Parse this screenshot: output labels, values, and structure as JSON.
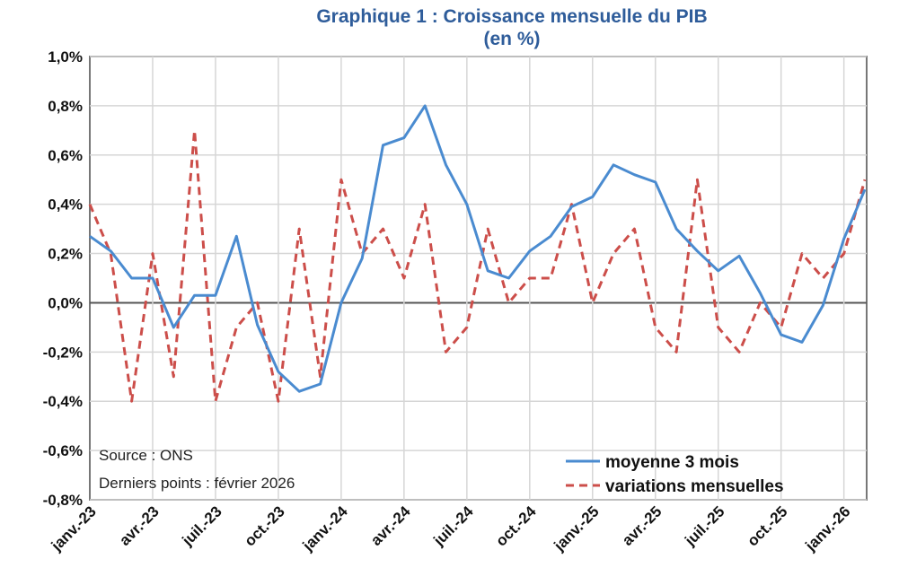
{
  "chart_data": {
    "type": "line",
    "title": "Graphique 1 : Croissance mensuelle du PIB",
    "subtitle": "(en %)",
    "xlabel": "",
    "ylabel": "",
    "ylim": [
      -0.8,
      1.0
    ],
    "y_ticks": [
      "1,0%",
      "0,8%",
      "0,6%",
      "0,4%",
      "0,2%",
      "0,0%",
      "-0,2%",
      "-0,4%",
      "-0,6%",
      "-0,8%"
    ],
    "x_tick_labels": [
      "janv.-23",
      "avr.-23",
      "juil.-23",
      "oct.-23",
      "janv.-24",
      "avr.-24",
      "juil.-24",
      "oct.-24",
      "janv.-25",
      "avr.-25",
      "juil.-25",
      "oct.-25",
      "janv.-26"
    ],
    "x_range": [
      "janv.-23",
      "févr.-26"
    ],
    "grid": true,
    "legend_position": "bottom-right",
    "series": [
      {
        "name": "moyenne 3 mois",
        "color": "#4A8BD0",
        "style": "solid",
        "values": [
          0.27,
          0.21,
          0.1,
          0.1,
          -0.1,
          0.03,
          0.03,
          0.27,
          -0.09,
          -0.28,
          -0.36,
          -0.33,
          0.0,
          0.18,
          0.64,
          0.67,
          0.8,
          0.56,
          0.4,
          0.13,
          0.1,
          0.21,
          0.27,
          0.39,
          0.43,
          0.56,
          0.52,
          0.49,
          0.3,
          0.21,
          0.13,
          0.19,
          0.04,
          -0.13,
          -0.16,
          -0.01,
          0.26,
          0.46
        ]
      },
      {
        "name": "variations mensuelles",
        "color": "#CC4E4A",
        "style": "dashed",
        "values": [
          0.4,
          0.2,
          -0.4,
          0.2,
          -0.3,
          0.7,
          -0.4,
          -0.1,
          0.0,
          -0.4,
          0.3,
          -0.3,
          0.5,
          0.2,
          0.3,
          0.1,
          0.4,
          -0.2,
          -0.1,
          0.3,
          0.0,
          0.1,
          0.1,
          0.4,
          0.0,
          0.2,
          0.3,
          -0.1,
          -0.2,
          0.5,
          -0.1,
          -0.2,
          0.0,
          -0.1,
          0.2,
          0.1,
          0.2,
          0.5
        ]
      }
    ],
    "annotations": [
      "Source : ONS",
      "Derniers points : février 2026"
    ]
  }
}
